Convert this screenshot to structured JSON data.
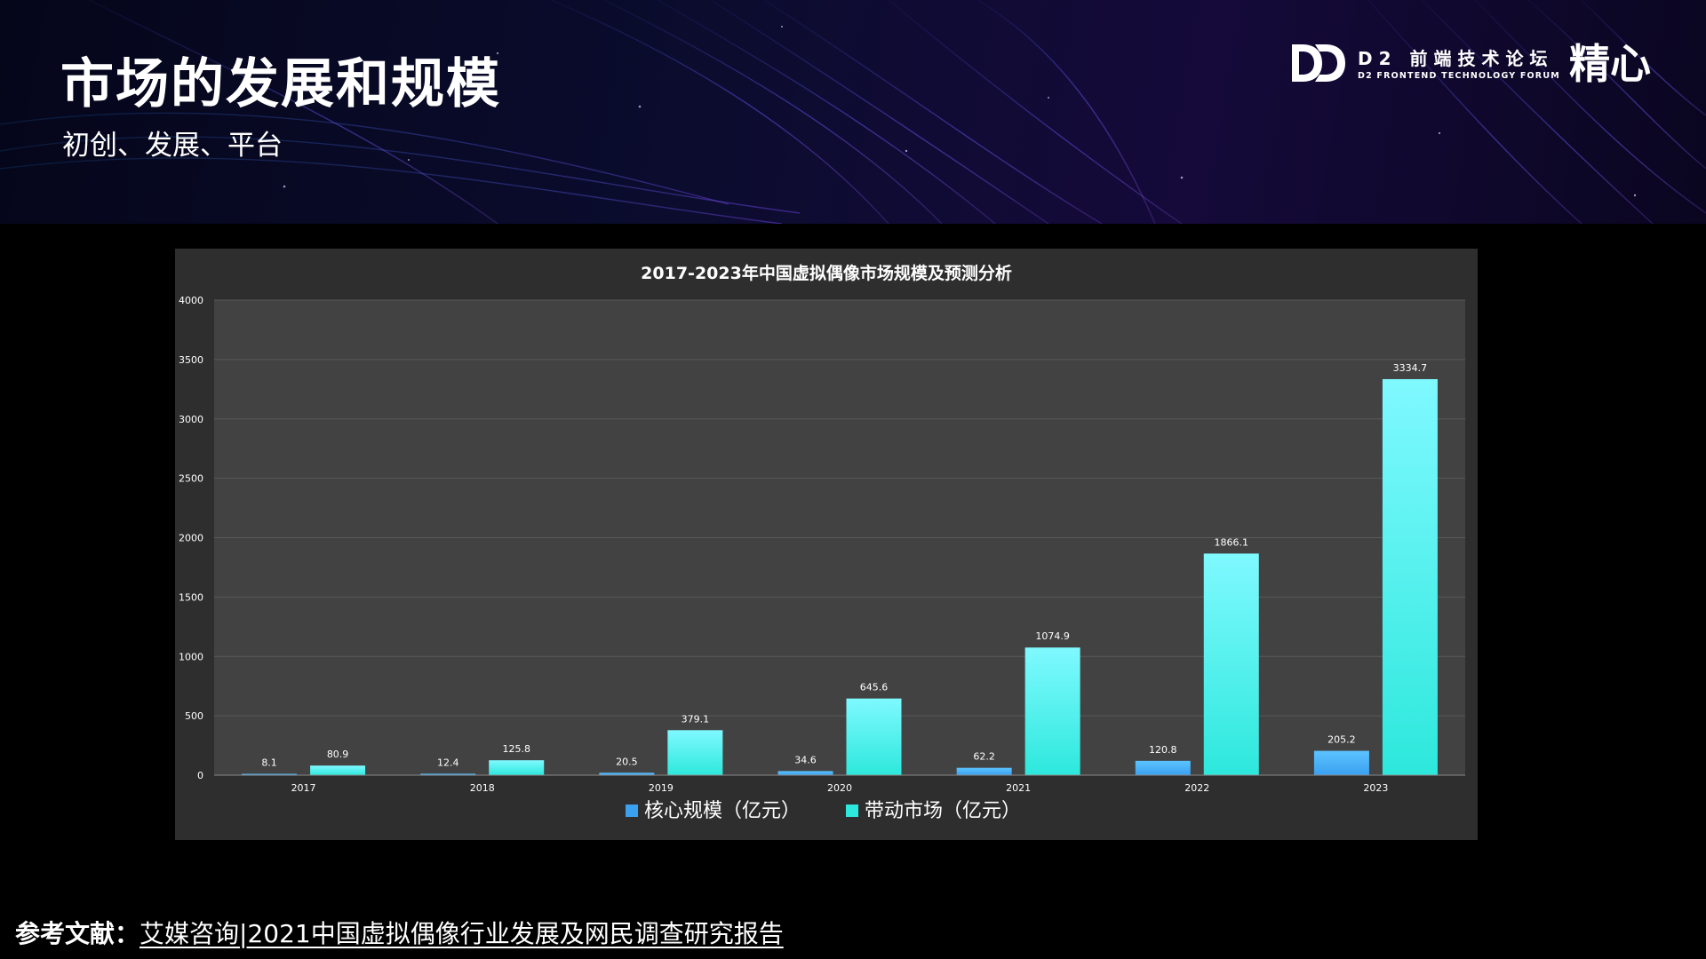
{
  "slide": {
    "title": "市场的发展和规模",
    "subtitle": "初创、发展、平台"
  },
  "brand": {
    "logo_icon": "dd-logo-icon",
    "name": "D2 前端技术论坛",
    "english": "D2 FRONTEND TECHNOLOGY FORUM",
    "slogan": "精心"
  },
  "reference": {
    "label": "参考文献：",
    "text": "艾媒咨询|2021中国虚拟偶像行业发展及网民调查研究报告"
  },
  "colors": {
    "background": "#000000",
    "panel": "#2e2e2e",
    "plot_area": "#424242",
    "series_core": "#3aa0f0",
    "series_driven": "#2de8dc"
  },
  "chart_data": {
    "type": "bar",
    "title": "2017-2023年中国虚拟偶像市场规模及预测分析",
    "categories": [
      "2017",
      "2018",
      "2019",
      "2020",
      "2021",
      "2022",
      "2023"
    ],
    "series": [
      {
        "name": "核心规模（亿元）",
        "values": [
          8.1,
          12.4,
          20.5,
          34.6,
          62.2,
          120.8,
          205.2
        ],
        "labels": [
          "8.1",
          "12.4",
          "20.5",
          "34.6",
          "62.2",
          "120.8",
          "205.2"
        ]
      },
      {
        "name": "带动市场（亿元）",
        "values": [
          80.9,
          125.8,
          379.1,
          645.6,
          1074.9,
          1866.1,
          3334.7
        ],
        "labels": [
          "80.9",
          "125.8",
          "379.1",
          "645.6",
          "1074.9",
          "1866.1",
          "3334.7"
        ]
      }
    ],
    "ylim": [
      0,
      4000
    ],
    "yticks": [
      "0",
      "500",
      "1000",
      "1500",
      "2000",
      "2500",
      "3000",
      "3500",
      "4000"
    ],
    "xlabel": "",
    "ylabel": "",
    "grid": true,
    "legend_position": "bottom"
  }
}
